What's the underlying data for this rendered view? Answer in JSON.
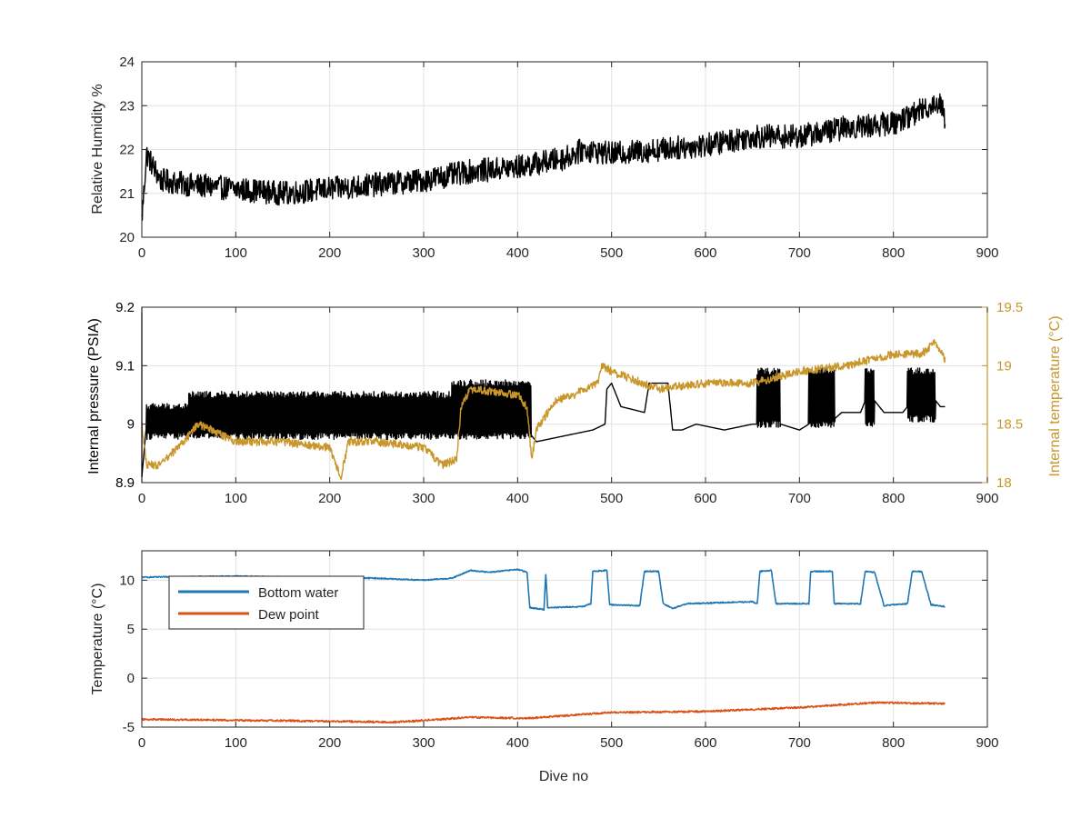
{
  "chart_data": [
    {
      "type": "line",
      "ylabel": "Relative Humidity %",
      "xlim": [
        0,
        900
      ],
      "ylim": [
        20,
        24
      ],
      "xticks": [
        0,
        100,
        200,
        300,
        400,
        500,
        600,
        700,
        800,
        900
      ],
      "yticks": [
        20,
        21,
        22,
        23,
        24
      ],
      "grid": true,
      "series": [
        {
          "color": "#000000",
          "noise": 0.55,
          "points": [
            [
              0,
              20.4
            ],
            [
              5,
              21.9
            ],
            [
              20,
              21.3
            ],
            [
              50,
              21.2
            ],
            [
              100,
              21.1
            ],
            [
              150,
              21.0
            ],
            [
              200,
              21.1
            ],
            [
              250,
              21.2
            ],
            [
              300,
              21.3
            ],
            [
              350,
              21.5
            ],
            [
              400,
              21.6
            ],
            [
              450,
              21.8
            ],
            [
              470,
              22.0
            ],
            [
              500,
              21.9
            ],
            [
              550,
              22.0
            ],
            [
              600,
              22.1
            ],
            [
              650,
              22.3
            ],
            [
              700,
              22.3
            ],
            [
              750,
              22.5
            ],
            [
              800,
              22.6
            ],
            [
              830,
              22.9
            ],
            [
              850,
              23.1
            ],
            [
              855,
              22.7
            ]
          ]
        }
      ]
    },
    {
      "type": "line",
      "ylabel": "Internal pressure (PSIA)",
      "ylabel_right": "Internal temperature (°C)",
      "xlim": [
        0,
        900
      ],
      "ylim": [
        8.9,
        9.2
      ],
      "ylim_right": [
        18,
        19.5
      ],
      "xticks": [
        0,
        100,
        200,
        300,
        400,
        500,
        600,
        700,
        800,
        900
      ],
      "yticks": [
        8.9,
        9.0,
        9.1,
        9.2
      ],
      "yticks_right": [
        18,
        18.5,
        19,
        19.5
      ],
      "yticklabels": [
        "8.9",
        "9",
        "9.1",
        "9.2"
      ],
      "yticklabels_right": [
        "18",
        "18.5",
        "19",
        "19.5"
      ],
      "grid": true,
      "series": [
        {
          "axis": "left",
          "color": "#000000",
          "segments": [
            {
              "x0": 5,
              "x1": 50,
              "lo": 8.98,
              "hi": 9.03
            },
            {
              "x0": 50,
              "x1": 330,
              "lo": 8.98,
              "hi": 9.05
            },
            {
              "x0": 330,
              "x1": 415,
              "lo": 8.98,
              "hi": 9.07
            },
            {
              "x0": 655,
              "x1": 680,
              "lo": 9.0,
              "hi": 9.09
            },
            {
              "x0": 710,
              "x1": 738,
              "lo": 9.0,
              "hi": 9.09
            },
            {
              "x0": 770,
              "x1": 780,
              "lo": 9.0,
              "hi": 9.09
            },
            {
              "x0": 815,
              "x1": 845,
              "lo": 9.01,
              "hi": 9.09
            }
          ],
          "points": [
            [
              0,
              8.91
            ],
            [
              5,
              9.0
            ],
            [
              415,
              8.98
            ],
            [
              420,
              8.97
            ],
            [
              450,
              8.98
            ],
            [
              480,
              8.99
            ],
            [
              493,
              9.0
            ],
            [
              495,
              9.06
            ],
            [
              500,
              9.07
            ],
            [
              510,
              9.03
            ],
            [
              535,
              9.02
            ],
            [
              540,
              9.07
            ],
            [
              560,
              9.07
            ],
            [
              565,
              8.99
            ],
            [
              575,
              8.99
            ],
            [
              590,
              9.0
            ],
            [
              620,
              8.99
            ],
            [
              650,
              9.0
            ],
            [
              655,
              9.0
            ],
            [
              680,
              9.0
            ],
            [
              700,
              8.99
            ],
            [
              710,
              9.0
            ],
            [
              738,
              9.01
            ],
            [
              745,
              9.02
            ],
            [
              765,
              9.02
            ],
            [
              770,
              9.04
            ],
            [
              780,
              9.04
            ],
            [
              790,
              9.02
            ],
            [
              810,
              9.02
            ],
            [
              815,
              9.03
            ],
            [
              845,
              9.04
            ],
            [
              850,
              9.03
            ],
            [
              855,
              9.03
            ]
          ]
        },
        {
          "axis": "right",
          "color": "#C8962A",
          "noise": 0.07,
          "points": [
            [
              0,
              18.5
            ],
            [
              5,
              18.15
            ],
            [
              20,
              18.15
            ],
            [
              50,
              18.4
            ],
            [
              60,
              18.5
            ],
            [
              100,
              18.35
            ],
            [
              150,
              18.35
            ],
            [
              200,
              18.3
            ],
            [
              212,
              18.05
            ],
            [
              220,
              18.35
            ],
            [
              250,
              18.35
            ],
            [
              300,
              18.3
            ],
            [
              320,
              18.15
            ],
            [
              335,
              18.2
            ],
            [
              340,
              18.65
            ],
            [
              350,
              18.8
            ],
            [
              400,
              18.75
            ],
            [
              410,
              18.65
            ],
            [
              415,
              18.2
            ],
            [
              420,
              18.45
            ],
            [
              440,
              18.7
            ],
            [
              460,
              18.75
            ],
            [
              485,
              18.85
            ],
            [
              490,
              19.0
            ],
            [
              500,
              18.95
            ],
            [
              550,
              18.8
            ],
            [
              600,
              18.85
            ],
            [
              650,
              18.85
            ],
            [
              700,
              18.95
            ],
            [
              750,
              19.0
            ],
            [
              800,
              19.1
            ],
            [
              830,
              19.1
            ],
            [
              845,
              19.2
            ],
            [
              855,
              19.05
            ]
          ]
        }
      ]
    },
    {
      "type": "line",
      "xlabel": "Dive no",
      "ylabel": "Temperature (°C)",
      "xlim": [
        0,
        900
      ],
      "ylim": [
        -5,
        13
      ],
      "xticks": [
        0,
        100,
        200,
        300,
        400,
        500,
        600,
        700,
        800,
        900
      ],
      "yticks": [
        -5,
        0,
        5,
        10
      ],
      "grid": true,
      "legend": {
        "position": "top-left",
        "entries": [
          "Bottom water",
          "Dew point"
        ]
      },
      "series": [
        {
          "name": "Bottom water",
          "color": "#1F77B4",
          "noise": 0.12,
          "points": [
            [
              0,
              10.3
            ],
            [
              100,
              10.4
            ],
            [
              250,
              10.2
            ],
            [
              300,
              10.0
            ],
            [
              330,
              10.2
            ],
            [
              350,
              11.0
            ],
            [
              370,
              10.8
            ],
            [
              400,
              11.1
            ],
            [
              410,
              10.8
            ],
            [
              413,
              7.2
            ],
            [
              428,
              7.0
            ],
            [
              430,
              10.6
            ],
            [
              432,
              7.2
            ],
            [
              470,
              7.3
            ],
            [
              478,
              7.6
            ],
            [
              480,
              10.9
            ],
            [
              495,
              11.0
            ],
            [
              498,
              7.5
            ],
            [
              530,
              7.4
            ],
            [
              535,
              10.9
            ],
            [
              550,
              10.9
            ],
            [
              555,
              7.6
            ],
            [
              565,
              7.1
            ],
            [
              580,
              7.6
            ],
            [
              650,
              7.8
            ],
            [
              655,
              7.6
            ],
            [
              658,
              10.9
            ],
            [
              670,
              11.0
            ],
            [
              675,
              7.6
            ],
            [
              710,
              7.6
            ],
            [
              712,
              10.9
            ],
            [
              735,
              10.9
            ],
            [
              737,
              7.6
            ],
            [
              765,
              7.6
            ],
            [
              770,
              10.9
            ],
            [
              780,
              10.8
            ],
            [
              790,
              7.4
            ],
            [
              815,
              7.6
            ],
            [
              820,
              10.9
            ],
            [
              830,
              10.9
            ],
            [
              840,
              7.5
            ],
            [
              855,
              7.3
            ]
          ]
        },
        {
          "name": "Dew point",
          "color": "#D95319",
          "noise": 0.18,
          "points": [
            [
              0,
              -4.2
            ],
            [
              100,
              -4.3
            ],
            [
              200,
              -4.4
            ],
            [
              270,
              -4.5
            ],
            [
              350,
              -4.0
            ],
            [
              410,
              -4.1
            ],
            [
              500,
              -3.5
            ],
            [
              600,
              -3.4
            ],
            [
              700,
              -3.0
            ],
            [
              780,
              -2.5
            ],
            [
              855,
              -2.6
            ]
          ]
        }
      ]
    }
  ]
}
